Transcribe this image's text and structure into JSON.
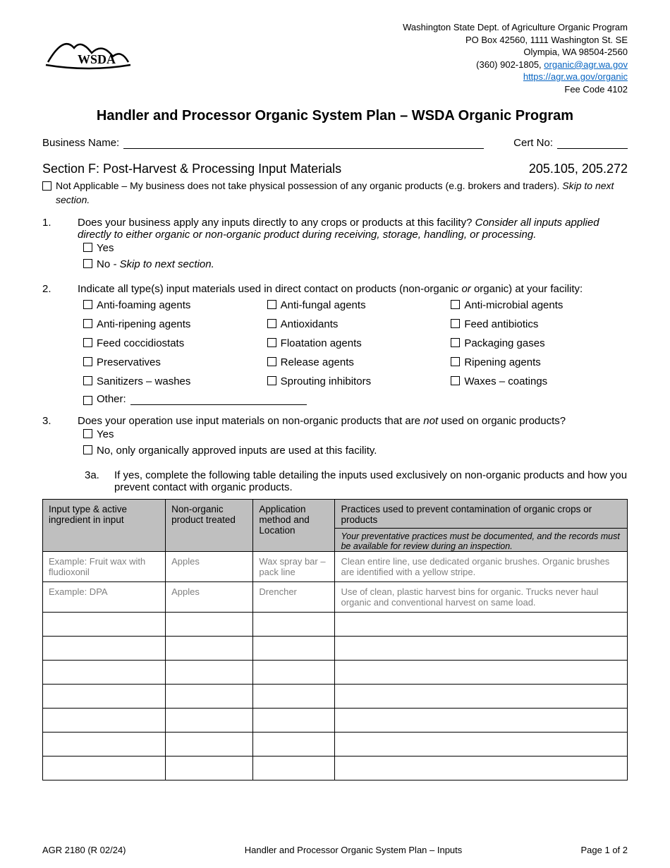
{
  "header": {
    "dept": "Washington State Dept. of Agriculture Organic Program",
    "po": "PO Box 42560, 1111 Washington St. SE",
    "city": "Olympia, WA 98504-2560",
    "phone": "(360) 902-1805, ",
    "email": "organic@agr.wa.gov",
    "url": "https://agr.wa.gov/organic",
    "fee": "Fee Code 4102"
  },
  "title": "Handler and Processor Organic System Plan – WSDA Organic Program",
  "business": {
    "name_label": "Business Name:",
    "cert_label": "Cert No:"
  },
  "section": {
    "heading": "Section F: Post-Harvest & Processing Input Materials",
    "refs": "205.105, 205.272",
    "na_text_a": "Not Applicable – My business does not take physical possession of any organic products (e.g. brokers and traders). ",
    "na_text_b": "Skip to next section."
  },
  "q1": {
    "num": "1.",
    "text_a": "Does your business apply any inputs directly to any crops or products at this facility? ",
    "text_b": "Consider all inputs applied directly to either organic or non-organic product during receiving, storage, handling, or processing.",
    "yes": "Yes",
    "no_a": "No",
    "no_b": " - Skip to next section."
  },
  "q2": {
    "num": "2.",
    "text_a": "Indicate all type(s) input materials used in direct contact on products (non-organic ",
    "text_or": "or",
    "text_b": " organic) at your facility:",
    "items": [
      "Anti-foaming agents",
      "Anti-fungal agents",
      "Anti-microbial agents",
      "Anti-ripening agents",
      "Antioxidants",
      "Feed antibiotics",
      "Feed coccidiostats",
      "Floatation agents",
      "Packaging gases",
      "Preservatives",
      "Release agents",
      "Ripening agents",
      "Sanitizers – washes",
      "Sprouting inhibitors",
      "Waxes – coatings"
    ],
    "other": "Other:"
  },
  "q3": {
    "num": "3.",
    "text_a": "Does your operation use input materials on non-organic products that are ",
    "text_not": "not",
    "text_b": " used on organic products?",
    "yes": "Yes",
    "no": "No, only organically approved inputs are used at this facility.",
    "sub_num": "3a.",
    "sub_text": "If yes, complete the following table detailing the inputs used exclusively on non-organic products and how you prevent contact with organic products."
  },
  "table": {
    "h1": "Input type & active ingredient in input",
    "h2": "Non-organic product treated",
    "h3": "Application method and Location",
    "h4a": "Practices used to prevent contamination of organic crops or products",
    "h4b": "Your preventative practices must be documented, and the records must be available for review during an inspection.",
    "ex1": [
      "Example: Fruit wax with fludioxonil",
      "Apples",
      "Wax spray bar – pack line",
      "Clean entire line, use dedicated organic brushes. Organic brushes are identified with a yellow stripe."
    ],
    "ex2": [
      "Example: DPA",
      "Apples",
      "Drencher",
      "Use of clean, plastic harvest bins for organic. Trucks never haul organic and conventional harvest on same load."
    ],
    "empty_rows": 7
  },
  "footer": {
    "left": "AGR 2180 (R 02/24)",
    "center": "Handler and Processor Organic System Plan – Inputs",
    "right": "Page 1 of 2"
  },
  "colors": {
    "link": "#0563c1",
    "header_bg": "#bfbfbf",
    "example_text": "#7f7f7f"
  }
}
